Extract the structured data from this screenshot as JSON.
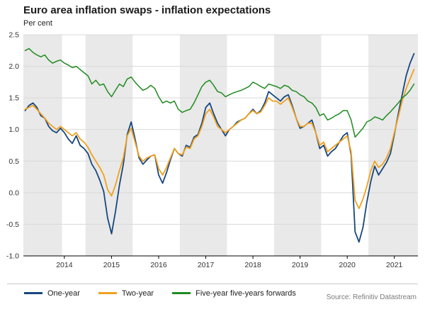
{
  "header": {
    "title": "Euro area inflation swaps - inflation expectations",
    "subtitle": "Per cent"
  },
  "footer": {
    "source": "Source: Refinitiv Datastream"
  },
  "chart_data": {
    "type": "line",
    "title": "Euro area inflation swaps - inflation expectations",
    "ylabel": "Per cent",
    "xlabel": "",
    "grid": true,
    "legend_position": "bottom",
    "x_start": 2013.167,
    "x_step": 0.08333,
    "xlim": [
      2013.13,
      2021.5
    ],
    "ylim": [
      -1.0,
      2.5
    ],
    "ytick_step": 0.5,
    "xticks": [
      2014,
      2015,
      2016,
      2017,
      2018,
      2019,
      2020,
      2021
    ],
    "shaded_bands": [
      [
        2013.13,
        2013.95
      ],
      [
        2014.45,
        2015.45
      ],
      [
        2016.45,
        2017.45
      ],
      [
        2018.45,
        2019.45
      ],
      [
        2020.45,
        2021.5
      ]
    ],
    "colors": {
      "band": "#e9e9e9",
      "grid": "#d9d9d9",
      "axis": "#000000",
      "tick_label": "#333333"
    },
    "series": [
      {
        "name": "One-year",
        "color": "#17477e",
        "width": 1.8,
        "values": [
          1.3,
          1.38,
          1.42,
          1.35,
          1.22,
          1.18,
          1.05,
          0.98,
          0.95,
          1.02,
          0.95,
          0.85,
          0.78,
          0.9,
          0.75,
          0.7,
          0.62,
          0.45,
          0.35,
          0.2,
          0.02,
          -0.4,
          -0.65,
          -0.3,
          0.12,
          0.45,
          0.92,
          1.12,
          0.85,
          0.55,
          0.45,
          0.52,
          0.58,
          0.6,
          0.28,
          0.15,
          0.32,
          0.52,
          0.7,
          0.62,
          0.58,
          0.75,
          0.72,
          0.88,
          0.92,
          1.1,
          1.35,
          1.42,
          1.25,
          1.1,
          1.0,
          0.9,
          1.0,
          1.05,
          1.12,
          1.15,
          1.18,
          1.25,
          1.32,
          1.25,
          1.3,
          1.42,
          1.6,
          1.55,
          1.5,
          1.45,
          1.52,
          1.55,
          1.38,
          1.18,
          1.02,
          1.05,
          1.1,
          1.15,
          0.95,
          0.7,
          0.75,
          0.58,
          0.65,
          0.7,
          0.8,
          0.9,
          0.95,
          0.6,
          -0.62,
          -0.78,
          -0.55,
          -0.15,
          0.18,
          0.42,
          0.28,
          0.38,
          0.48,
          0.62,
          0.92,
          1.25,
          1.55,
          1.85,
          2.05,
          2.2
        ]
      },
      {
        "name": "Two-year",
        "color": "#f0a11e",
        "width": 1.8,
        "values": [
          1.32,
          1.35,
          1.38,
          1.32,
          1.25,
          1.18,
          1.1,
          1.05,
          1.0,
          1.05,
          1.0,
          0.95,
          0.9,
          0.95,
          0.85,
          0.8,
          0.72,
          0.6,
          0.5,
          0.4,
          0.28,
          0.05,
          -0.05,
          0.12,
          0.35,
          0.55,
          0.9,
          1.02,
          0.8,
          0.58,
          0.5,
          0.55,
          0.58,
          0.6,
          0.38,
          0.28,
          0.4,
          0.55,
          0.7,
          0.62,
          0.6,
          0.72,
          0.7,
          0.85,
          0.9,
          1.05,
          1.25,
          1.32,
          1.2,
          1.05,
          1.0,
          0.95,
          1.0,
          1.05,
          1.1,
          1.15,
          1.18,
          1.25,
          1.3,
          1.25,
          1.28,
          1.38,
          1.5,
          1.45,
          1.45,
          1.4,
          1.45,
          1.5,
          1.35,
          1.18,
          1.05,
          1.05,
          1.1,
          1.1,
          0.95,
          0.75,
          0.8,
          0.65,
          0.7,
          0.75,
          0.8,
          0.85,
          0.9,
          0.65,
          -0.12,
          -0.25,
          -0.1,
          0.1,
          0.35,
          0.5,
          0.4,
          0.45,
          0.55,
          0.7,
          0.95,
          1.2,
          1.45,
          1.65,
          1.8,
          1.95
        ]
      },
      {
        "name": "Five-year five-years forwards",
        "color": "#1f8b1f",
        "width": 1.5,
        "values": [
          2.25,
          2.28,
          2.22,
          2.18,
          2.15,
          2.18,
          2.1,
          2.05,
          2.08,
          2.1,
          2.05,
          2.02,
          1.98,
          2.0,
          1.95,
          1.9,
          1.85,
          1.72,
          1.78,
          1.7,
          1.72,
          1.6,
          1.52,
          1.62,
          1.72,
          1.68,
          1.8,
          1.83,
          1.75,
          1.68,
          1.62,
          1.65,
          1.7,
          1.65,
          1.52,
          1.42,
          1.45,
          1.42,
          1.45,
          1.32,
          1.27,
          1.3,
          1.32,
          1.42,
          1.55,
          1.68,
          1.75,
          1.78,
          1.7,
          1.6,
          1.58,
          1.52,
          1.55,
          1.58,
          1.6,
          1.62,
          1.65,
          1.68,
          1.75,
          1.72,
          1.68,
          1.65,
          1.72,
          1.7,
          1.68,
          1.65,
          1.7,
          1.68,
          1.62,
          1.6,
          1.55,
          1.52,
          1.45,
          1.42,
          1.35,
          1.22,
          1.25,
          1.15,
          1.18,
          1.22,
          1.25,
          1.3,
          1.3,
          1.15,
          0.88,
          0.95,
          1.02,
          1.12,
          1.15,
          1.2,
          1.18,
          1.15,
          1.22,
          1.28,
          1.35,
          1.42,
          1.5,
          1.55,
          1.62,
          1.72
        ]
      }
    ]
  }
}
